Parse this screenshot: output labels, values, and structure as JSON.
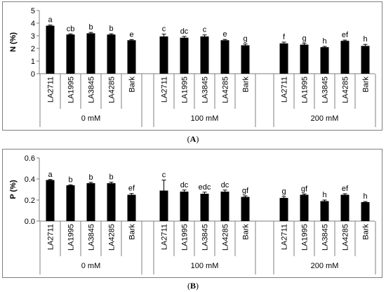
{
  "chart_data": [
    {
      "type": "bar",
      "panel_label": "A",
      "ylabel": "N (%)",
      "ylim": [
        0,
        5
      ],
      "yticks": [
        "0",
        "1",
        "2",
        "3",
        "4",
        "5"
      ],
      "groups": [
        {
          "name": "0 mM",
          "categories": [
            "LA2711",
            "LA1995",
            "LA3845",
            "LA4285",
            "Bark"
          ],
          "values": [
            3.8,
            3.1,
            3.2,
            3.1,
            2.65
          ],
          "errors": [
            0.05,
            0.05,
            0.07,
            0.06,
            0.05
          ],
          "letters": [
            "a",
            "cb",
            "b",
            "b",
            "e"
          ]
        },
        {
          "name": "100 mM",
          "categories": [
            "LA2711",
            "LA1995",
            "LA3845",
            "LA4285",
            "Bark"
          ],
          "values": [
            2.95,
            2.85,
            2.95,
            2.65,
            2.25
          ],
          "errors": [
            0.18,
            0.1,
            0.12,
            0.06,
            0.1
          ],
          "letters": [
            "c",
            "dc",
            "c",
            "e",
            "g"
          ]
        },
        {
          "name": "200 mM",
          "categories": [
            "LA2711",
            "LA1995",
            "LA3845",
            "LA4285",
            "Bark"
          ],
          "values": [
            2.4,
            2.3,
            2.1,
            2.6,
            2.2
          ],
          "errors": [
            0.1,
            0.1,
            0.06,
            0.06,
            0.12
          ],
          "letters": [
            "f",
            "g",
            "h",
            "ef",
            "h"
          ]
        }
      ],
      "bar_color": "#000000"
    },
    {
      "type": "bar",
      "panel_label": "B",
      "ylabel": "P (%)",
      "ylim": [
        0,
        0.6
      ],
      "yticks": [
        "0.0",
        "0.2",
        "0.4",
        "0.6"
      ],
      "groups": [
        {
          "name": "0 mM",
          "categories": [
            "LA2711",
            "LA1995",
            "LA3845",
            "LA4285",
            "Bark"
          ],
          "values": [
            0.39,
            0.34,
            0.36,
            0.36,
            0.25
          ],
          "errors": [
            0.005,
            0.005,
            0.008,
            0.01,
            0.012
          ],
          "letters": [
            "a",
            "b",
            "b",
            "b",
            "ef"
          ]
        },
        {
          "name": "100 mM",
          "categories": [
            "LA2711",
            "LA1995",
            "LA3845",
            "LA4285",
            "Bark"
          ],
          "values": [
            0.29,
            0.28,
            0.26,
            0.28,
            0.23
          ],
          "errors": [
            0.1,
            0.015,
            0.015,
            0.015,
            0.01
          ],
          "letters": [
            "c",
            "dc",
            "edc",
            "dc",
            "gf"
          ]
        },
        {
          "name": "200 mM",
          "categories": [
            "LA2711",
            "LA1995",
            "LA3845",
            "LA4285",
            "Bark"
          ],
          "values": [
            0.22,
            0.25,
            0.19,
            0.25,
            0.18
          ],
          "errors": [
            0.012,
            0.008,
            0.01,
            0.01,
            0.006
          ],
          "letters": [
            "g",
            "gf",
            "h",
            "ef",
            "h"
          ]
        }
      ],
      "bar_color": "#000000"
    }
  ],
  "captions": {
    "a": "A",
    "b": "B"
  }
}
